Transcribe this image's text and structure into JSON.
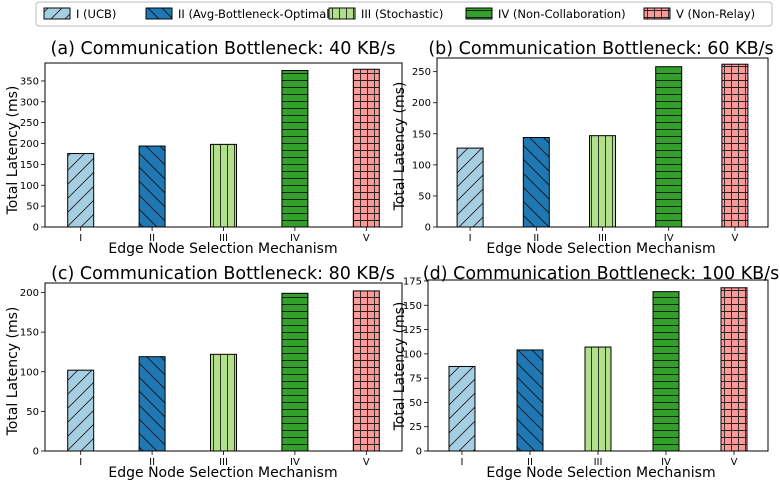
{
  "figure": {
    "legend": [
      {
        "label": "I (UCB)",
        "color": "#a6cee3",
        "hatch": "diagonal-forward"
      },
      {
        "label": "II (Avg-Bottleneck-Optimal)",
        "color": "#1f78b4",
        "hatch": "diagonal-back"
      },
      {
        "label": "III (Stochastic)",
        "color": "#b2df8a",
        "hatch": "vertical"
      },
      {
        "label": "IV (Non-Collaboration)",
        "color": "#33a02c",
        "hatch": "horizontal"
      },
      {
        "label": "V (Non-Relay)",
        "color": "#fb9a99",
        "hatch": "grid"
      }
    ]
  },
  "chart_data": [
    {
      "type": "bar",
      "title": "(a) Communication Bottleneck: 40 KB/s",
      "xlabel": "Edge Node Selection Mechanism",
      "ylabel": "Total Latency (ms)",
      "categories": [
        "I",
        "II",
        "III",
        "IV",
        "V"
      ],
      "values": [
        176,
        194,
        198,
        375,
        378
      ],
      "ylim": [
        0,
        393
      ],
      "yticks": [
        0,
        50,
        100,
        150,
        200,
        250,
        300,
        350
      ]
    },
    {
      "type": "bar",
      "title": "(b) Communication Bottleneck: 60 KB/s",
      "xlabel": "Edge Node Selection Mechanism",
      "ylabel": "Total Latency (ms)",
      "categories": [
        "I",
        "II",
        "III",
        "IV",
        "V"
      ],
      "values": [
        127,
        144,
        147,
        258,
        262
      ],
      "ylim": [
        0,
        272
      ],
      "yticks": [
        0,
        50,
        100,
        150,
        200,
        250
      ]
    },
    {
      "type": "bar",
      "title": "(c) Communication Bottleneck: 80 KB/s",
      "xlabel": "Edge Node Selection Mechanism",
      "ylabel": "Total Latency (ms)",
      "categories": [
        "I",
        "II",
        "III",
        "IV",
        "V"
      ],
      "values": [
        102,
        119,
        122,
        199,
        202
      ],
      "ylim": [
        0,
        212
      ],
      "yticks": [
        0,
        50,
        100,
        150,
        200
      ]
    },
    {
      "type": "bar",
      "title": "(d) Communication Bottleneck: 100 KB/s",
      "xlabel": "Edge Node Selection Mechanism",
      "ylabel": "Total Latency (ms)",
      "categories": [
        "I",
        "II",
        "III",
        "IV",
        "V"
      ],
      "values": [
        87,
        104,
        107,
        164,
        168
      ],
      "ylim": [
        0,
        176
      ],
      "yticks": [
        0,
        25,
        50,
        75,
        100,
        125,
        150,
        175
      ]
    }
  ]
}
